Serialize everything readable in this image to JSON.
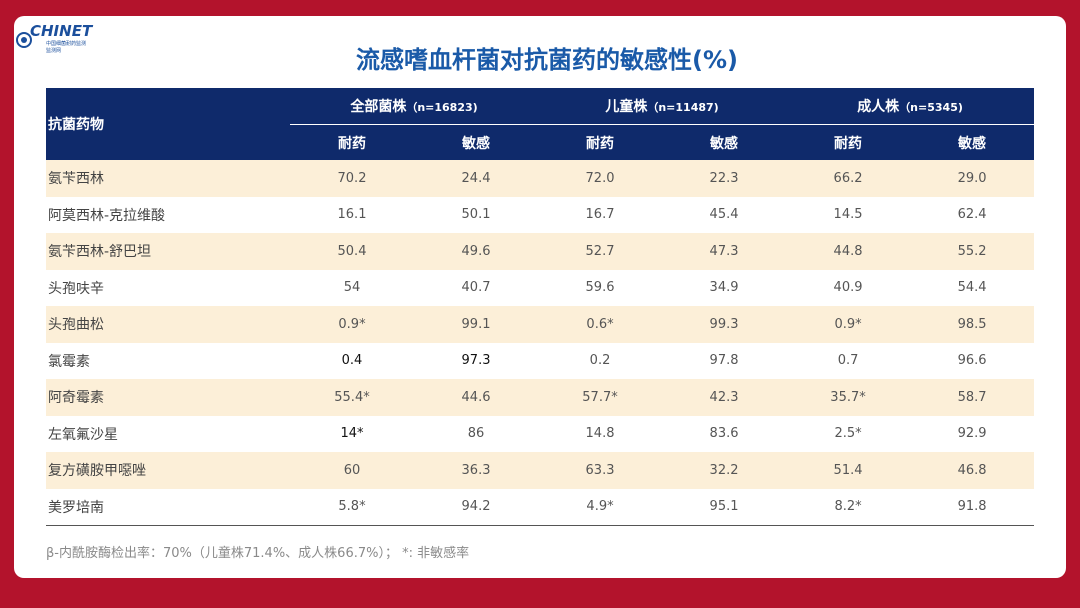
{
  "logo": {
    "name": "CHINET",
    "sub": "中国细菌耐药监测",
    "sub2": "监测网"
  },
  "title": "流感嗜血杆菌对抗菌药的敏感性(%)",
  "table": {
    "drug_header": "抗菌药物",
    "groups": [
      {
        "label": "全部菌株",
        "n": "（n=16823)"
      },
      {
        "label": "儿童株",
        "n": "（n=11487)"
      },
      {
        "label": "成人株",
        "n": "（n=5345)"
      }
    ],
    "sub_headers": [
      "耐药",
      "敏感",
      "耐药",
      "敏感",
      "耐药",
      "敏感"
    ],
    "rows": [
      {
        "drug": "氨苄西林",
        "values": [
          "70.2",
          "24.4",
          "72.0",
          "22.3",
          "66.2",
          "29.0"
        ]
      },
      {
        "drug": "阿莫西林-克拉维酸",
        "values": [
          "16.1",
          "50.1",
          "16.7",
          "45.4",
          "14.5",
          "62.4"
        ]
      },
      {
        "drug": "氨苄西林-舒巴坦",
        "values": [
          "50.4",
          "49.6",
          "52.7",
          "47.3",
          "44.8",
          "55.2"
        ]
      },
      {
        "drug": "头孢呋辛",
        "values": [
          "54",
          "40.7",
          "59.6",
          "34.9",
          "40.9",
          "54.4"
        ]
      },
      {
        "drug": "头孢曲松",
        "values": [
          "0.9*",
          "99.1",
          "0.6*",
          "99.3",
          "0.9*",
          "98.5"
        ]
      },
      {
        "drug": "氯霉素",
        "values": [
          "0.4",
          "97.3",
          "0.2",
          "97.8",
          "0.7",
          "96.6"
        ]
      },
      {
        "drug": "阿奇霉素",
        "values": [
          "55.4*",
          "44.6",
          "57.7*",
          "42.3",
          "35.7*",
          "58.7"
        ]
      },
      {
        "drug": "左氧氟沙星",
        "values": [
          "14*",
          "86",
          "14.8",
          "83.6",
          "2.5*",
          "92.9"
        ]
      },
      {
        "drug": "复方磺胺甲噁唑",
        "values": [
          "60",
          "36.3",
          "63.3",
          "32.2",
          "51.4",
          "46.8"
        ]
      },
      {
        "drug": "美罗培南",
        "values": [
          "5.8*",
          "94.2",
          "4.9*",
          "95.1",
          "8.2*",
          "91.8"
        ]
      }
    ]
  },
  "footnote": "β-内酰胺酶检出率：70%（儿童株71.4%、成人株66.7%）； *: 非敏感率"
}
